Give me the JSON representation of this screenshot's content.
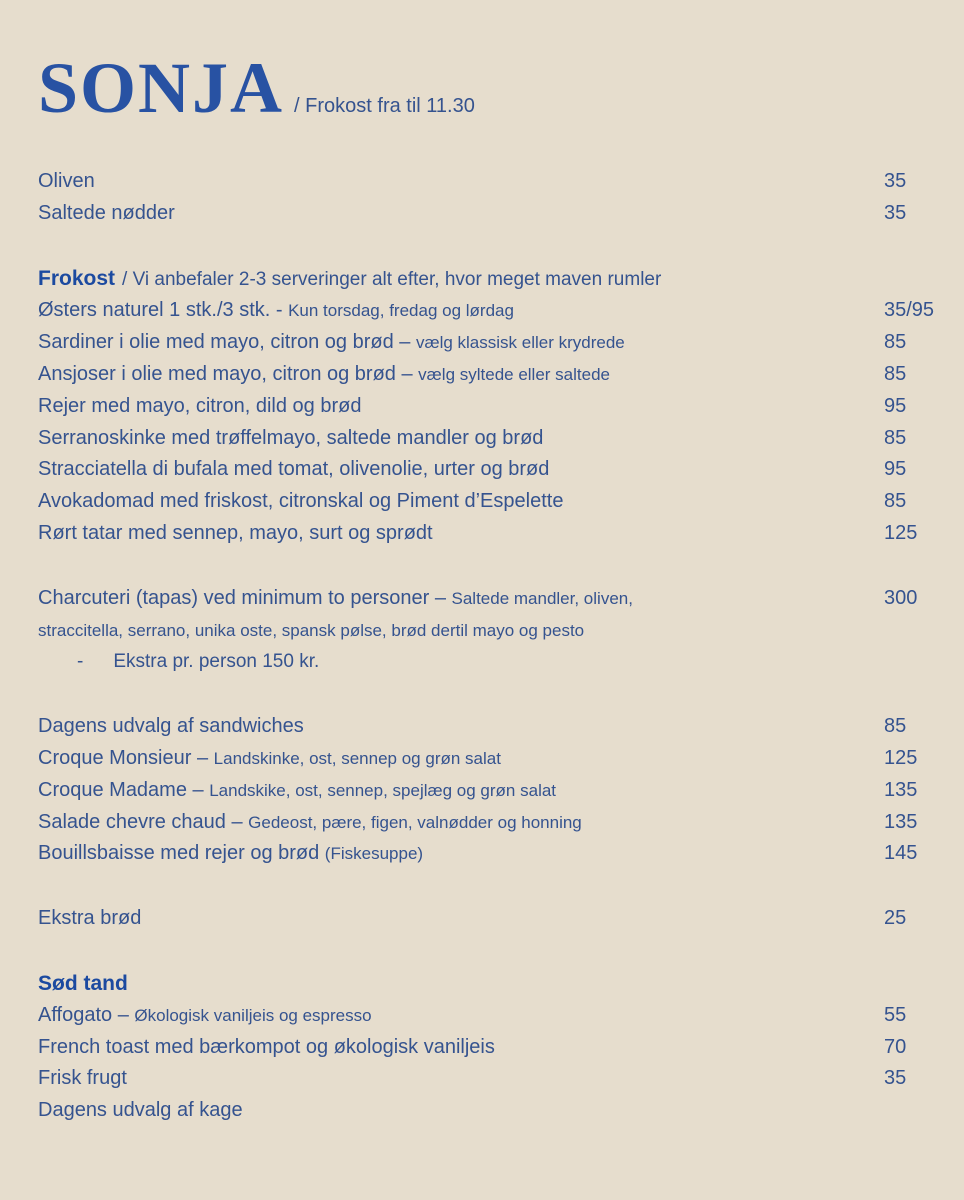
{
  "theme": {
    "background": "#e6ddcd",
    "text_blue": "#35538f",
    "heading_blue": "#1c4aa0",
    "title_blue": "#2852a3"
  },
  "header": {
    "title": "SONJA",
    "subtitle": "/ Frokost fra til 11.30"
  },
  "sections": [
    {
      "id": "snacks",
      "items": [
        {
          "main": "Oliven",
          "price": "35"
        },
        {
          "main": "Saltede nødder",
          "price": "35"
        }
      ]
    },
    {
      "id": "frokost",
      "heading": "Frokost",
      "heading_note": "/ Vi anbefaler 2-3 serveringer alt efter, hvor meget maven rumler",
      "items": [
        {
          "main": "Østers naturel 1 stk./3 stk. - ",
          "note": "Kun torsdag, fredag og lørdag",
          "price": "35/95"
        },
        {
          "main": "Sardiner i olie med mayo, citron og brød – ",
          "note": "vælg klassisk eller krydrede",
          "price": "85"
        },
        {
          "main": "Ansjoser i olie med mayo, citron og brød – ",
          "note": "vælg syltede eller saltede",
          "price": "85"
        },
        {
          "main": "Rejer med mayo, citron, dild og brød",
          "price": "95"
        },
        {
          "main": "Serranoskinke med trøffelmayo, saltede mandler og brød",
          "price": "85"
        },
        {
          "main": "Stracciatella di bufala med tomat, olivenolie, urter og brød",
          "price": "95"
        },
        {
          "main": "Avokadomad med friskost, citronskal og Piment d’Espelette",
          "price": "85"
        },
        {
          "main": "Rørt tatar med sennep, mayo, surt og sprødt",
          "price": "125"
        }
      ]
    },
    {
      "id": "charcuteri",
      "items": [
        {
          "main": "Charcuteri (tapas) ved minimum to personer – ",
          "note": "Saltede mandler, oliven,",
          "cont": "straccitella, serrano, unika oste, spansk pølse, brød dertil mayo og pesto",
          "price": "300"
        },
        {
          "bullet": "-",
          "main": "Ekstra pr. person 150 kr.",
          "indent": true
        }
      ]
    },
    {
      "id": "sandwiches",
      "items": [
        {
          "main": "Dagens udvalg af sandwiches",
          "price": "85"
        },
        {
          "main": "Croque Monsieur – ",
          "note": "Landskinke, ost, sennep og grøn salat",
          "price": "125"
        },
        {
          "main": "Croque Madame – ",
          "note": "Landskike, ost, sennep, spejlæg og grøn salat",
          "price": "135"
        },
        {
          "main": "Salade chevre chaud – ",
          "note": "Gedeost, pære, figen, valnødder og honning",
          "price": "135"
        },
        {
          "main": "Bouillsbaisse med rejer og brød ",
          "note": "(Fiskesuppe)",
          "price": "145"
        }
      ]
    },
    {
      "id": "ekstra",
      "items": [
        {
          "main": "Ekstra brød",
          "price": "25"
        }
      ]
    },
    {
      "id": "soed-tand",
      "heading": "Sød tand",
      "items": [
        {
          "main": "Affogato – ",
          "note": "Økologisk vaniljeis og espresso",
          "price": "55"
        },
        {
          "main": "French toast med bærkompot og økologisk vaniljeis",
          "price": "70"
        },
        {
          "main": "Frisk frugt",
          "price": "35"
        },
        {
          "main": "Dagens udvalg af kage"
        }
      ]
    }
  ]
}
